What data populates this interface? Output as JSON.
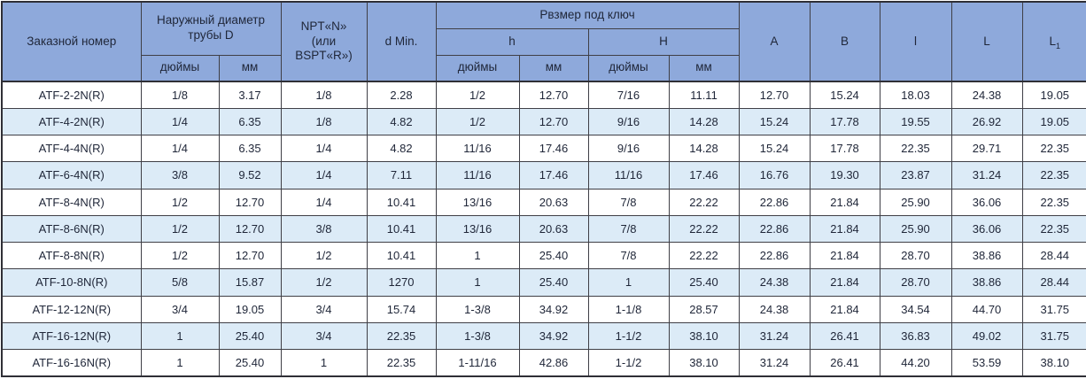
{
  "table": {
    "header": {
      "order_number": "Заказной номер",
      "outer_diameter": "Наружный диаметр\nтрубы D",
      "npt": "NPT«N»\n(или\nBSPT«R»)",
      "d_min": "d Min.",
      "wrench_size": "Рвзмер под ключ",
      "h_low": "h",
      "h_cap": "H",
      "unit_inches": "дюймы",
      "unit_mm": "мм",
      "col_A": "A",
      "col_B": "B",
      "col_l": "l",
      "col_L": "L",
      "col_L1_base": "L",
      "col_L1_sub": "1"
    },
    "rows": [
      [
        "ATF-2-2N(R)",
        "1/8",
        "3.17",
        "1/8",
        "2.28",
        "1/2",
        "12.70",
        "7/16",
        "11.11",
        "12.70",
        "15.24",
        "18.03",
        "24.38",
        "19.05"
      ],
      [
        "ATF-4-2N(R)",
        "1/4",
        "6.35",
        "1/8",
        "4.82",
        "1/2",
        "12.70",
        "9/16",
        "14.28",
        "15.24",
        "17.78",
        "19.55",
        "26.92",
        "19.05"
      ],
      [
        "ATF-4-4N(R)",
        "1/4",
        "6.35",
        "1/4",
        "4.82",
        "11/16",
        "17.46",
        "9/16",
        "14.28",
        "15.24",
        "17.78",
        "22.35",
        "29.71",
        "22.35"
      ],
      [
        "ATF-6-4N(R)",
        "3/8",
        "9.52",
        "1/4",
        "7.11",
        "11/16",
        "17.46",
        "11/16",
        "17.46",
        "16.76",
        "19.30",
        "23.87",
        "31.24",
        "22.35"
      ],
      [
        "ATF-8-4N(R)",
        "1/2",
        "12.70",
        "1/4",
        "10.41",
        "13/16",
        "20.63",
        "7/8",
        "22.22",
        "22.86",
        "21.84",
        "25.90",
        "36.06",
        "22.35"
      ],
      [
        "ATF-8-6N(R)",
        "1/2",
        "12.70",
        "3/8",
        "10.41",
        "13/16",
        "20.63",
        "7/8",
        "22.22",
        "22.86",
        "21.84",
        "25.90",
        "36.06",
        "22.35"
      ],
      [
        "ATF-8-8N(R)",
        "1/2",
        "12.70",
        "1/2",
        "10.41",
        "1",
        "25.40",
        "7/8",
        "22.22",
        "22.86",
        "21.84",
        "28.70",
        "38.86",
        "28.44"
      ],
      [
        "ATF-10-8N(R)",
        "5/8",
        "15.87",
        "1/2",
        "1270",
        "1",
        "25.40",
        "1",
        "25.40",
        "24.38",
        "21.84",
        "28.70",
        "38.86",
        "28.44"
      ],
      [
        "ATF-12-12N(R)",
        "3/4",
        "19.05",
        "3/4",
        "15.74",
        "1-3/8",
        "34.92",
        "1-1/8",
        "28.57",
        "24.38",
        "21.84",
        "34.54",
        "44.70",
        "31.75"
      ],
      [
        "ATF-16-12N(R)",
        "1",
        "25.40",
        "3/4",
        "22.35",
        "1-3/8",
        "34.92",
        "1-1/2",
        "38.10",
        "31.24",
        "26.41",
        "36.83",
        "49.02",
        "31.75"
      ],
      [
        "ATF-16-16N(R)",
        "1",
        "25.40",
        "1",
        "22.35",
        "1-11/16",
        "42.86",
        "1-1/2",
        "38.10",
        "31.24",
        "26.41",
        "44.20",
        "53.59",
        "38.10"
      ]
    ]
  },
  "colors": {
    "header_bg": "#8EA9DB",
    "alt_row_bg": "#DCEBF7",
    "row_bg": "#FFFFFF",
    "border": "#3F3F46",
    "text": "#1F2638"
  }
}
